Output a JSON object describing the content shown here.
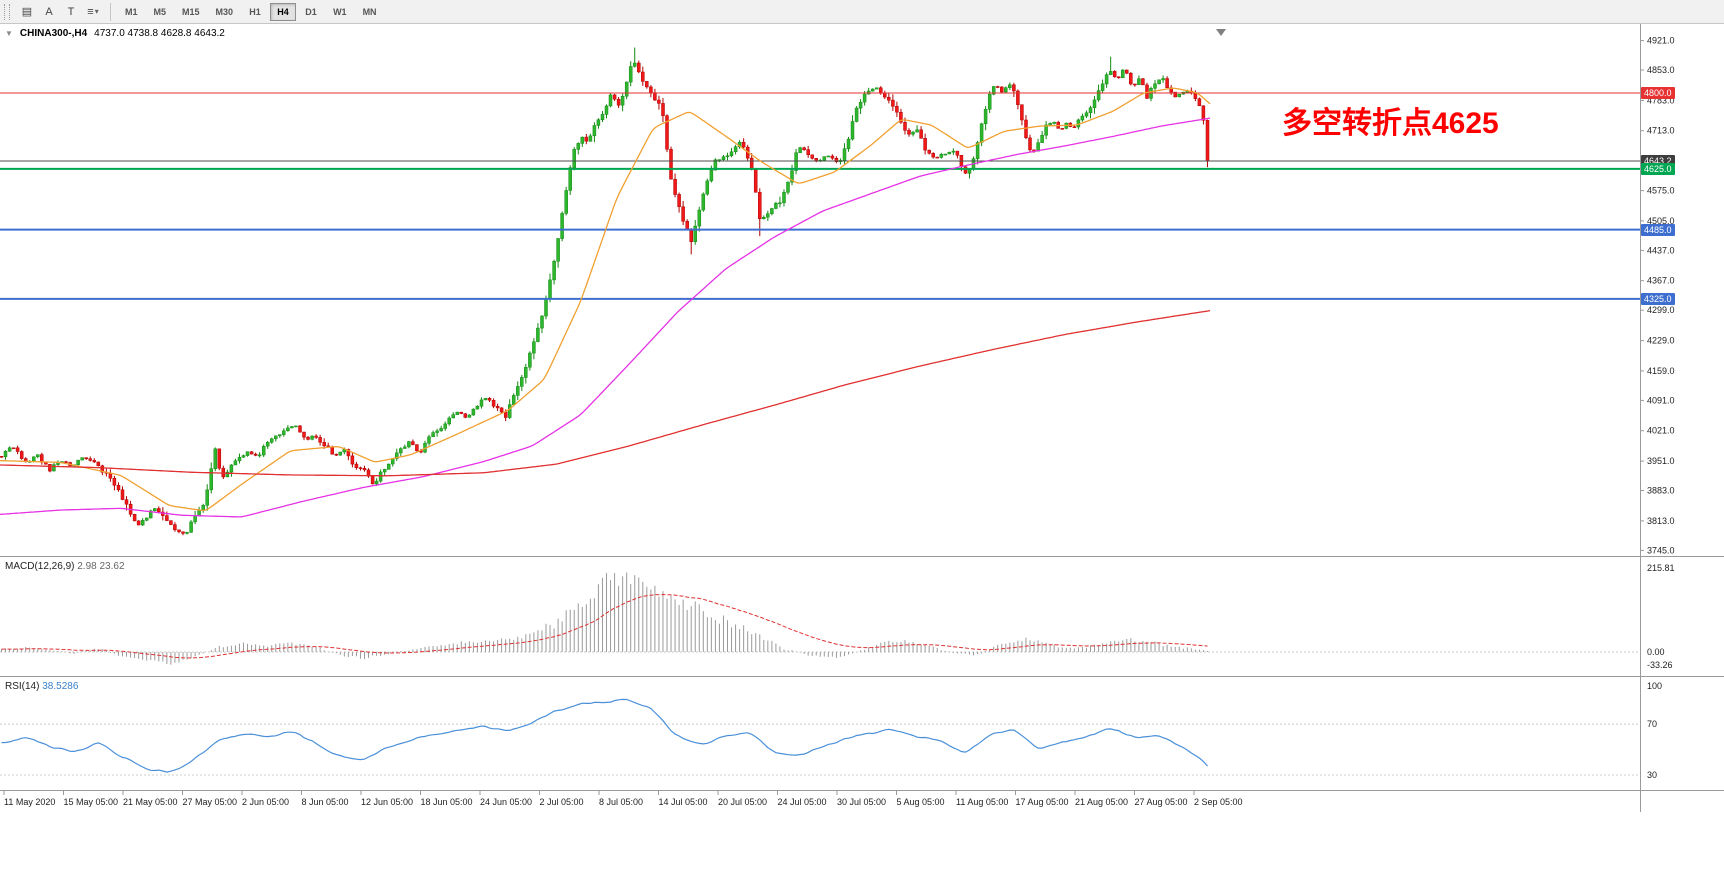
{
  "toolbar": {
    "icons": [
      {
        "name": "chart-windows-icon",
        "glyph": "▤"
      },
      {
        "name": "font-a-icon",
        "glyph": "A"
      },
      {
        "name": "text-label-icon",
        "glyph": "T"
      },
      {
        "name": "chart-list-icon",
        "glyph": "≡",
        "caret": true
      }
    ],
    "timeframes": [
      "M1",
      "M5",
      "M15",
      "M30",
      "H1",
      "H4",
      "D1",
      "W1",
      "MN"
    ],
    "active_timeframe": "H4"
  },
  "chart": {
    "expander": "▼",
    "title": "CHINA300-,H4",
    "ohlc": "4737.0 4738.8 4628.8 4643.2"
  },
  "annotation": {
    "text": "多空转折点4625",
    "color": "#ff0000"
  },
  "indicators": {
    "macd": {
      "name": "MACD(12,26,9)",
      "values": "2.98 23.62",
      "axis_labels": [
        "215.81",
        "0.00",
        "-33.26"
      ]
    },
    "rsi": {
      "name": "RSI(14)",
      "value": "38.5286",
      "levels": [
        {
          "label": "100",
          "value": 100
        },
        {
          "label": "70",
          "value": 70
        },
        {
          "label": "30",
          "value": 30
        }
      ]
    }
  },
  "chart_data": {
    "type": "candlestick",
    "symbol": "CHINA300-",
    "timeframe": "H4",
    "last_bar": {
      "open": 4737.0,
      "high": 4738.8,
      "low": 4628.8,
      "close": 4643.2
    },
    "price_ticks": [
      "4921.0",
      "4853.0",
      "4783.0",
      "4713.0",
      "4575.0",
      "4505.0",
      "4437.0",
      "4367.0",
      "4299.0",
      "4229.0",
      "4159.0",
      "4091.0",
      "4021.0",
      "3951.0",
      "3883.0",
      "3813.0",
      "3745.0"
    ],
    "tagged_levels": [
      {
        "label": "4800.0",
        "value": 4800.0,
        "color": "#e63232",
        "width": 1,
        "tag_bg": "#e63232"
      },
      {
        "label": "4643.2",
        "value": 4643.2,
        "color": "#4c4c4c",
        "width": 1,
        "tag_bg": "#3d3d3d"
      },
      {
        "label": "4625.0",
        "value": 4625.0,
        "color": "#00a651",
        "width": 2,
        "tag_bg": "#00a651"
      },
      {
        "label": "4485.0",
        "value": 4485.0,
        "color": "#3e6fd0",
        "width": 2,
        "tag_bg": "#3e6fd0"
      },
      {
        "label": "4325.0",
        "value": 4325.0,
        "color": "#3e6fd0",
        "width": 2,
        "tag_bg": "#3e6fd0"
      }
    ],
    "time_labels": [
      "11 May 2020",
      "15 May 05:00",
      "21 May 05:00",
      "27 May 05:00",
      "2 Jun 05:00",
      "8 Jun 05:00",
      "12 Jun 05:00",
      "18 Jun 05:00",
      "24 Jun 05:00",
      "2 Jul 05:00",
      "8 Jul 05:00",
      "14 Jul 05:00",
      "20 Jul 05:00",
      "24 Jul 05:00",
      "30 Jul 05:00",
      "5 Aug 05:00",
      "11 Aug 05:00",
      "17 Aug 05:00",
      "21 Aug 05:00",
      "27 Aug 05:00",
      "2 Sep 05:00"
    ],
    "num_bars": 300,
    "close_path": [
      [
        0.0,
        3962
      ],
      [
        0.01,
        3985
      ],
      [
        0.02,
        3948
      ],
      [
        0.03,
        3965
      ],
      [
        0.04,
        3928
      ],
      [
        0.048,
        3952
      ],
      [
        0.058,
        3938
      ],
      [
        0.068,
        3958
      ],
      [
        0.078,
        3942
      ],
      [
        0.088,
        3920
      ],
      [
        0.096,
        3892
      ],
      [
        0.104,
        3845
      ],
      [
        0.112,
        3800
      ],
      [
        0.12,
        3822
      ],
      [
        0.128,
        3845
      ],
      [
        0.136,
        3812
      ],
      [
        0.144,
        3792
      ],
      [
        0.152,
        3784
      ],
      [
        0.16,
        3818
      ],
      [
        0.168,
        3858
      ],
      [
        0.174,
        3930
      ],
      [
        0.178,
        3988
      ],
      [
        0.182,
        3908
      ],
      [
        0.188,
        3932
      ],
      [
        0.196,
        3958
      ],
      [
        0.204,
        3972
      ],
      [
        0.212,
        3962
      ],
      [
        0.22,
        3992
      ],
      [
        0.228,
        4006
      ],
      [
        0.236,
        4022
      ],
      [
        0.244,
        4034
      ],
      [
        0.252,
        3998
      ],
      [
        0.26,
        4012
      ],
      [
        0.268,
        3988
      ],
      [
        0.276,
        3962
      ],
      [
        0.284,
        3978
      ],
      [
        0.292,
        3938
      ],
      [
        0.3,
        3934
      ],
      [
        0.308,
        3896
      ],
      [
        0.314,
        3920
      ],
      [
        0.322,
        3952
      ],
      [
        0.33,
        3978
      ],
      [
        0.338,
        3996
      ],
      [
        0.346,
        3968
      ],
      [
        0.354,
        4002
      ],
      [
        0.362,
        4022
      ],
      [
        0.37,
        4048
      ],
      [
        0.378,
        4064
      ],
      [
        0.386,
        4052
      ],
      [
        0.394,
        4078
      ],
      [
        0.402,
        4098
      ],
      [
        0.41,
        4076
      ],
      [
        0.418,
        4056
      ],
      [
        0.426,
        4110
      ],
      [
        0.434,
        4165
      ],
      [
        0.442,
        4230
      ],
      [
        0.45,
        4302
      ],
      [
        0.456,
        4380
      ],
      [
        0.462,
        4470
      ],
      [
        0.468,
        4570
      ],
      [
        0.474,
        4660
      ],
      [
        0.48,
        4700
      ],
      [
        0.486,
        4688
      ],
      [
        0.492,
        4730
      ],
      [
        0.499,
        4755
      ],
      [
        0.506,
        4800
      ],
      [
        0.512,
        4770
      ],
      [
        0.518,
        4820
      ],
      [
        0.524,
        4878
      ],
      [
        0.53,
        4840
      ],
      [
        0.536,
        4805
      ],
      [
        0.542,
        4788
      ],
      [
        0.548,
        4760
      ],
      [
        0.554,
        4620
      ],
      [
        0.56,
        4548
      ],
      [
        0.566,
        4502
      ],
      [
        0.572,
        4455
      ],
      [
        0.578,
        4528
      ],
      [
        0.584,
        4582
      ],
      [
        0.59,
        4640
      ],
      [
        0.597,
        4648
      ],
      [
        0.605,
        4665
      ],
      [
        0.613,
        4690
      ],
      [
        0.621,
        4638
      ],
      [
        0.629,
        4508
      ],
      [
        0.637,
        4528
      ],
      [
        0.645,
        4548
      ],
      [
        0.653,
        4598
      ],
      [
        0.661,
        4680
      ],
      [
        0.669,
        4662
      ],
      [
        0.677,
        4638
      ],
      [
        0.685,
        4658
      ],
      [
        0.694,
        4636
      ],
      [
        0.702,
        4695
      ],
      [
        0.71,
        4772
      ],
      [
        0.718,
        4805
      ],
      [
        0.726,
        4808
      ],
      [
        0.734,
        4788
      ],
      [
        0.743,
        4752
      ],
      [
        0.751,
        4708
      ],
      [
        0.759,
        4715
      ],
      [
        0.767,
        4660
      ],
      [
        0.775,
        4652
      ],
      [
        0.783,
        4660
      ],
      [
        0.792,
        4662
      ],
      [
        0.8,
        4608
      ],
      [
        0.806,
        4652
      ],
      [
        0.812,
        4718
      ],
      [
        0.818,
        4790
      ],
      [
        0.824,
        4826
      ],
      [
        0.83,
        4800
      ],
      [
        0.836,
        4824
      ],
      [
        0.842,
        4786
      ],
      [
        0.848,
        4712
      ],
      [
        0.854,
        4654
      ],
      [
        0.86,
        4690
      ],
      [
        0.866,
        4722
      ],
      [
        0.872,
        4736
      ],
      [
        0.878,
        4712
      ],
      [
        0.884,
        4732
      ],
      [
        0.889,
        4718
      ],
      [
        0.895,
        4742
      ],
      [
        0.901,
        4762
      ],
      [
        0.907,
        4788
      ],
      [
        0.913,
        4820
      ],
      [
        0.919,
        4856
      ],
      [
        0.925,
        4830
      ],
      [
        0.931,
        4858
      ],
      [
        0.938,
        4812
      ],
      [
        0.944,
        4836
      ],
      [
        0.95,
        4788
      ],
      [
        0.956,
        4822
      ],
      [
        0.962,
        4838
      ],
      [
        0.968,
        4808
      ],
      [
        0.974,
        4790
      ],
      [
        0.98,
        4804
      ],
      [
        0.987,
        4796
      ],
      [
        0.993,
        4772
      ],
      [
        0.997,
        4737
      ],
      [
        1.0,
        4643.2
      ]
    ],
    "spikes": [
      {
        "t": 0.524,
        "high": 4905
      },
      {
        "t": 0.572,
        "low": 4428
      },
      {
        "t": 0.629,
        "low": 4470
      },
      {
        "t": 0.919,
        "high": 4884
      }
    ],
    "moving_averages": [
      {
        "name": "ma-fast-orange",
        "color": "#f0a030",
        "points": [
          [
            0,
            3952
          ],
          [
            0.05,
            3948
          ],
          [
            0.1,
            3918
          ],
          [
            0.14,
            3848
          ],
          [
            0.17,
            3836
          ],
          [
            0.2,
            3898
          ],
          [
            0.24,
            3975
          ],
          [
            0.28,
            3985
          ],
          [
            0.31,
            3948
          ],
          [
            0.34,
            3966
          ],
          [
            0.38,
            4016
          ],
          [
            0.42,
            4068
          ],
          [
            0.45,
            4140
          ],
          [
            0.48,
            4320
          ],
          [
            0.51,
            4560
          ],
          [
            0.54,
            4720
          ],
          [
            0.57,
            4758
          ],
          [
            0.6,
            4700
          ],
          [
            0.63,
            4640
          ],
          [
            0.66,
            4590
          ],
          [
            0.69,
            4618
          ],
          [
            0.72,
            4680
          ],
          [
            0.745,
            4740
          ],
          [
            0.77,
            4726
          ],
          [
            0.8,
            4672
          ],
          [
            0.83,
            4712
          ],
          [
            0.86,
            4724
          ],
          [
            0.89,
            4726
          ],
          [
            0.92,
            4758
          ],
          [
            0.945,
            4800
          ],
          [
            0.97,
            4812
          ],
          [
            0.99,
            4800
          ],
          [
            1,
            4775
          ]
        ]
      },
      {
        "name": "ma-mid-magenta",
        "color": "#e632e6",
        "points": [
          [
            0,
            3828
          ],
          [
            0.05,
            3838
          ],
          [
            0.1,
            3842
          ],
          [
            0.15,
            3826
          ],
          [
            0.2,
            3822
          ],
          [
            0.25,
            3858
          ],
          [
            0.3,
            3890
          ],
          [
            0.35,
            3915
          ],
          [
            0.4,
            3950
          ],
          [
            0.44,
            3986
          ],
          [
            0.48,
            4058
          ],
          [
            0.52,
            4175
          ],
          [
            0.56,
            4295
          ],
          [
            0.6,
            4395
          ],
          [
            0.64,
            4468
          ],
          [
            0.68,
            4528
          ],
          [
            0.72,
            4568
          ],
          [
            0.76,
            4608
          ],
          [
            0.8,
            4634
          ],
          [
            0.84,
            4658
          ],
          [
            0.88,
            4678
          ],
          [
            0.92,
            4700
          ],
          [
            0.96,
            4724
          ],
          [
            1,
            4742
          ]
        ]
      },
      {
        "name": "ma-slow-red",
        "color": "#e03030",
        "points": [
          [
            0,
            3942
          ],
          [
            0.08,
            3936
          ],
          [
            0.16,
            3925
          ],
          [
            0.24,
            3919
          ],
          [
            0.32,
            3917
          ],
          [
            0.4,
            3924
          ],
          [
            0.46,
            3944
          ],
          [
            0.52,
            3986
          ],
          [
            0.58,
            4034
          ],
          [
            0.64,
            4080
          ],
          [
            0.7,
            4128
          ],
          [
            0.76,
            4170
          ],
          [
            0.82,
            4208
          ],
          [
            0.88,
            4243
          ],
          [
            0.94,
            4272
          ],
          [
            1,
            4298
          ]
        ]
      }
    ],
    "macd": {
      "histogram": [
        [
          0,
          8
        ],
        [
          0.02,
          12
        ],
        [
          0.04,
          6
        ],
        [
          0.06,
          -4
        ],
        [
          0.08,
          10
        ],
        [
          0.1,
          -12
        ],
        [
          0.12,
          -24
        ],
        [
          0.14,
          -33
        ],
        [
          0.16,
          -12
        ],
        [
          0.18,
          14
        ],
        [
          0.2,
          22
        ],
        [
          0.22,
          18
        ],
        [
          0.24,
          26
        ],
        [
          0.26,
          14
        ],
        [
          0.28,
          -8
        ],
        [
          0.3,
          -18
        ],
        [
          0.32,
          -6
        ],
        [
          0.34,
          8
        ],
        [
          0.36,
          16
        ],
        [
          0.38,
          24
        ],
        [
          0.4,
          28
        ],
        [
          0.42,
          34
        ],
        [
          0.44,
          48
        ],
        [
          0.46,
          80
        ],
        [
          0.48,
          130
        ],
        [
          0.5,
          185
        ],
        [
          0.515,
          215
        ],
        [
          0.53,
          205
        ],
        [
          0.55,
          170
        ],
        [
          0.57,
          130
        ],
        [
          0.59,
          95
        ],
        [
          0.61,
          70
        ],
        [
          0.63,
          40
        ],
        [
          0.65,
          8
        ],
        [
          0.67,
          -10
        ],
        [
          0.69,
          -16
        ],
        [
          0.71,
          2
        ],
        [
          0.73,
          26
        ],
        [
          0.75,
          30
        ],
        [
          0.77,
          16
        ],
        [
          0.79,
          -4
        ],
        [
          0.81,
          -8
        ],
        [
          0.83,
          22
        ],
        [
          0.85,
          34
        ],
        [
          0.87,
          20
        ],
        [
          0.89,
          8
        ],
        [
          0.91,
          20
        ],
        [
          0.93,
          36
        ],
        [
          0.95,
          28
        ],
        [
          0.97,
          16
        ],
        [
          0.985,
          10
        ],
        [
          1,
          3
        ]
      ]
    },
    "rsi": {
      "points": [
        [
          0,
          55
        ],
        [
          0.02,
          60
        ],
        [
          0.04,
          52
        ],
        [
          0.06,
          48
        ],
        [
          0.08,
          56
        ],
        [
          0.1,
          44
        ],
        [
          0.12,
          35
        ],
        [
          0.14,
          32
        ],
        [
          0.16,
          42
        ],
        [
          0.18,
          58
        ],
        [
          0.2,
          62
        ],
        [
          0.22,
          60
        ],
        [
          0.24,
          65
        ],
        [
          0.26,
          55
        ],
        [
          0.28,
          45
        ],
        [
          0.3,
          42
        ],
        [
          0.32,
          52
        ],
        [
          0.34,
          58
        ],
        [
          0.36,
          62
        ],
        [
          0.38,
          66
        ],
        [
          0.4,
          68
        ],
        [
          0.42,
          64
        ],
        [
          0.44,
          72
        ],
        [
          0.46,
          80
        ],
        [
          0.48,
          86
        ],
        [
          0.5,
          88
        ],
        [
          0.52,
          90
        ],
        [
          0.54,
          82
        ],
        [
          0.56,
          60
        ],
        [
          0.58,
          54
        ],
        [
          0.6,
          60
        ],
        [
          0.62,
          64
        ],
        [
          0.64,
          47
        ],
        [
          0.66,
          45
        ],
        [
          0.68,
          52
        ],
        [
          0.7,
          58
        ],
        [
          0.72,
          63
        ],
        [
          0.74,
          66
        ],
        [
          0.76,
          60
        ],
        [
          0.78,
          56
        ],
        [
          0.8,
          47
        ],
        [
          0.82,
          62
        ],
        [
          0.84,
          65
        ],
        [
          0.86,
          50
        ],
        [
          0.88,
          56
        ],
        [
          0.9,
          60
        ],
        [
          0.92,
          67
        ],
        [
          0.94,
          59
        ],
        [
          0.96,
          62
        ],
        [
          0.98,
          52
        ],
        [
          0.99,
          46
        ],
        [
          1,
          38.5
        ]
      ]
    },
    "colors": {
      "up": "#2fb62f",
      "up_border": "#128a12",
      "down": "#f01818",
      "down_border": "#b00000",
      "macd_hist": "#9a9a9a",
      "macd_signal": "#e03030",
      "rsi": "#4a90d9"
    }
  }
}
